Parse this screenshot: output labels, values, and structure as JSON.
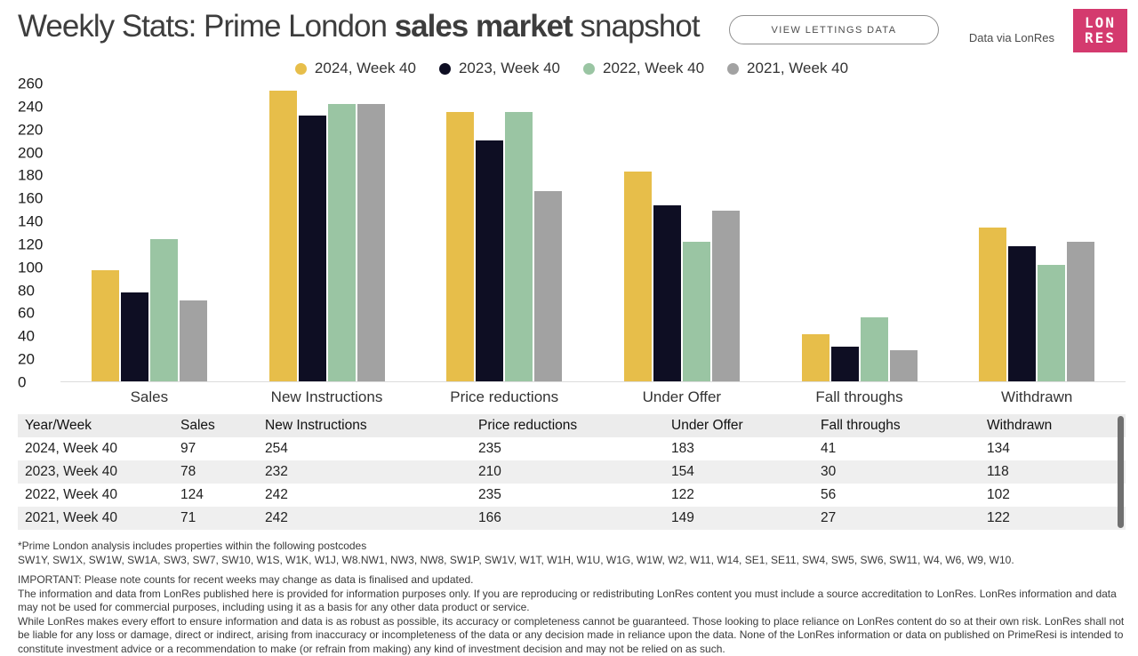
{
  "header": {
    "title_prefix": "Weekly Stats: Prime London ",
    "title_bold": "sales market",
    "title_suffix": " snapshot",
    "button_label": "VIEW LETTINGS DATA",
    "data_via": "Data via LonRes",
    "logo_line1": "LON",
    "logo_line2": "RES",
    "logo_color": "#d43a6e"
  },
  "chart_data": {
    "type": "bar",
    "categories": [
      "Sales",
      "New Instructions",
      "Price reductions",
      "Under Offer",
      "Fall throughs",
      "Withdrawn"
    ],
    "series": [
      {
        "name": "2024, Week 40",
        "color": "#e7be4a",
        "values": [
          97,
          254,
          235,
          183,
          41,
          134
        ]
      },
      {
        "name": "2023, Week 40",
        "color": "#0e0e23",
        "values": [
          78,
          232,
          210,
          154,
          30,
          118
        ]
      },
      {
        "name": "2022, Week 40",
        "color": "#9ac5a3",
        "values": [
          124,
          242,
          235,
          122,
          56,
          102
        ]
      },
      {
        "name": "2021, Week 40",
        "color": "#a2a2a2",
        "values": [
          71,
          242,
          166,
          149,
          27,
          122
        ]
      }
    ],
    "ylim": [
      0,
      260
    ],
    "ytick_step": 20,
    "legend_position": "top",
    "grid": false,
    "xlabel": "",
    "ylabel": ""
  },
  "table": {
    "columns": [
      "Year/Week",
      "Sales",
      "New Instructions",
      "Price reductions",
      "Under Offer",
      "Fall throughs",
      "Withdrawn"
    ],
    "rows": [
      [
        "2024, Week 40",
        "97",
        "254",
        "235",
        "183",
        "41",
        "134"
      ],
      [
        "2023, Week 40",
        "78",
        "232",
        "210",
        "154",
        "30",
        "118"
      ],
      [
        "2022, Week 40",
        "124",
        "242",
        "235",
        "122",
        "56",
        "102"
      ],
      [
        "2021, Week 40",
        "71",
        "242",
        "166",
        "149",
        "27",
        "122"
      ]
    ]
  },
  "footnotes": {
    "prime_note": "*Prime London analysis includes properties within the following postcodes",
    "postcodes": "SW1Y, SW1X, SW1W, SW1A, SW3, SW7, SW10, W1S, W1K, W1J, W8.NW1, NW3, NW8, SW1P, SW1V, W1T, W1H, W1U, W1G, W1W, W2, W11, W14, SE1, SE11, SW4, SW5, SW6, SW11, W4, W6, W9, W10.",
    "important": "IMPORTANT: Please note counts for recent weeks may change as data is finalised and updated.",
    "info": "The information and data from LonRes published here is provided for information purposes only. If you are reproducing or redistributing LonRes content you must include a source accreditation to LonRes. LonRes information and data may not be used for commercial purposes, including using it as a basis for any other data product or service.",
    "disclaimer": "While LonRes makes every effort to ensure information and data is as robust as possible, its accuracy or completeness cannot be guaranteed. Those looking to place reliance on LonRes content do so at their own risk. LonRes shall not be liable for any loss or damage, direct or indirect, arising from inaccuracy or incompleteness of the data or any decision made in reliance upon the data. None of the LonRes information or data on published on PrimeResi is intended to constitute investment advice or a recommendation to make (or refrain from making) any kind of investment decision and may not be relied on as such."
  }
}
